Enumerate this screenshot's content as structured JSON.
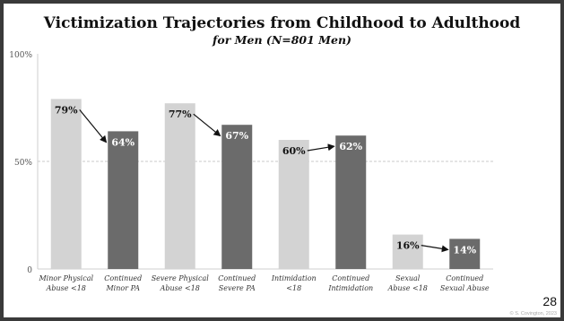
{
  "slide": {
    "page_number": "28",
    "credit": "© S. Covington, 2023"
  },
  "chart_data": {
    "type": "bar",
    "title": "Victimization Trajectories from Childhood to Adulthood",
    "subtitle": "for Men (N=801 Men)",
    "categories": [
      [
        "Minor Physical",
        "Abuse <18"
      ],
      [
        "Continued",
        "Minor PA"
      ],
      [
        "Severe Physical",
        "Abuse <18"
      ],
      [
        "Continued",
        "Severe PA"
      ],
      [
        "Intimidation",
        "<18"
      ],
      [
        "Continued",
        "Intimidation"
      ],
      [
        "Sexual",
        "Abuse <18"
      ],
      [
        "Continued",
        "Sexual Abuse"
      ]
    ],
    "values": [
      79,
      64,
      77,
      67,
      60,
      62,
      16,
      14
    ],
    "value_labels": [
      "79%",
      "64%",
      "77%",
      "67%",
      "60%",
      "62%",
      "16%",
      "14%"
    ],
    "bar_colors": [
      "#d3d3d3",
      "#6b6b6b",
      "#d3d3d3",
      "#6b6b6b",
      "#d3d3d3",
      "#6b6b6b",
      "#d3d3d3",
      "#6b6b6b"
    ],
    "ylim": [
      0,
      100
    ],
    "yticks": [
      {
        "value": 0,
        "label": "0"
      },
      {
        "value": 50,
        "label": "50%"
      },
      {
        "value": 100,
        "label": "100%"
      }
    ],
    "reference_line": 50,
    "arrows": [
      [
        0,
        1
      ],
      [
        2,
        3
      ],
      [
        4,
        5
      ],
      [
        6,
        7
      ]
    ],
    "legend": "none",
    "grid": false
  }
}
